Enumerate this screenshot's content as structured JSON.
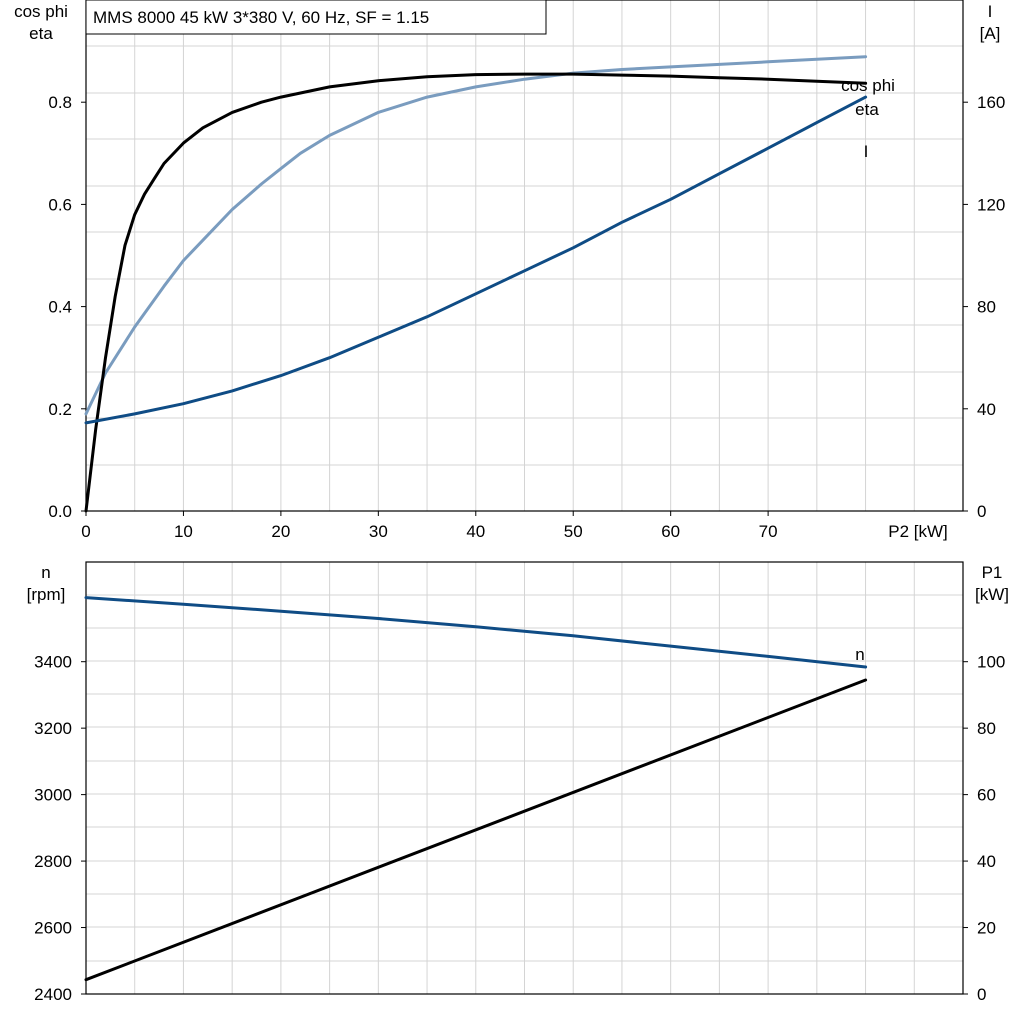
{
  "chart_data": [
    {
      "type": "line",
      "title": "MMS 8000   45 kW   3*380 V, 60 Hz, SF = 1.15",
      "xlabel": "P2 [kW]",
      "xlim": [
        0,
        90
      ],
      "xticks": [
        0,
        10,
        20,
        30,
        40,
        50,
        60,
        70
      ],
      "ylabel_left": [
        "cos phi",
        "eta"
      ],
      "ylim_left": [
        0,
        1.0
      ],
      "yticks_left": [
        "0.0",
        "0.2",
        "0.4",
        "0.6",
        "0.8"
      ],
      "ylabel_right": [
        "I",
        "[A]"
      ],
      "ylim_right": [
        0,
        200
      ],
      "yticks_right": [
        "0",
        "40",
        "80",
        "120",
        "160"
      ],
      "grid": true,
      "series": [
        {
          "name": "cos phi",
          "axis": "left",
          "color": "#7a9cbf",
          "x": [
            0,
            2,
            5,
            8,
            10,
            12,
            15,
            18,
            20,
            22,
            25,
            30,
            35,
            40,
            45,
            50,
            55,
            60,
            65,
            70,
            75,
            80
          ],
          "y": [
            0.19,
            0.27,
            0.36,
            0.44,
            0.49,
            0.53,
            0.59,
            0.64,
            0.67,
            0.7,
            0.735,
            0.78,
            0.81,
            0.83,
            0.845,
            0.857,
            0.864,
            0.869,
            0.874,
            0.879,
            0.884,
            0.889
          ]
        },
        {
          "name": "eta",
          "axis": "left",
          "color": "#000000",
          "x": [
            0,
            1,
            2,
            3,
            4,
            5,
            6,
            7,
            8,
            10,
            12,
            15,
            18,
            20,
            25,
            30,
            35,
            40,
            45,
            50,
            55,
            60,
            65,
            70,
            75,
            80
          ],
          "y": [
            0.0,
            0.16,
            0.3,
            0.42,
            0.52,
            0.58,
            0.62,
            0.65,
            0.68,
            0.72,
            0.75,
            0.78,
            0.8,
            0.81,
            0.83,
            0.842,
            0.85,
            0.854,
            0.855,
            0.855,
            0.853,
            0.851,
            0.848,
            0.845,
            0.841,
            0.837
          ]
        },
        {
          "name": "I",
          "axis": "right",
          "color": "#0f4c85",
          "x": [
            0,
            5,
            10,
            15,
            20,
            25,
            30,
            35,
            40,
            45,
            50,
            55,
            60,
            65,
            70,
            75,
            80
          ],
          "y": [
            34.5,
            38,
            42,
            47,
            53,
            60,
            68,
            76,
            85,
            94,
            103,
            113,
            122,
            132,
            142,
            152,
            162
          ]
        }
      ]
    },
    {
      "type": "line",
      "xlabel": "",
      "xlim": [
        0,
        90
      ],
      "ylabel_left": [
        "n",
        "[rpm]"
      ],
      "ylim_left": [
        2400,
        3700
      ],
      "yticks_left": [
        "2400",
        "2600",
        "2800",
        "3000",
        "3200",
        "3400"
      ],
      "ylabel_right": [
        "P1",
        "[kW]"
      ],
      "ylim_right": [
        0,
        130
      ],
      "yticks_right": [
        "0",
        "20",
        "40",
        "60",
        "80",
        "100"
      ],
      "grid": true,
      "series": [
        {
          "name": "n",
          "axis": "left",
          "color": "#0f4c85",
          "x": [
            0,
            10,
            20,
            30,
            40,
            50,
            60,
            70,
            80
          ],
          "y": [
            3593,
            3573,
            3552,
            3530,
            3505,
            3478,
            3447,
            3416,
            3384
          ]
        },
        {
          "name": "",
          "axis": "right",
          "color": "#000000",
          "x": [
            0,
            80
          ],
          "y": [
            4.3,
            94.5
          ]
        }
      ]
    }
  ]
}
